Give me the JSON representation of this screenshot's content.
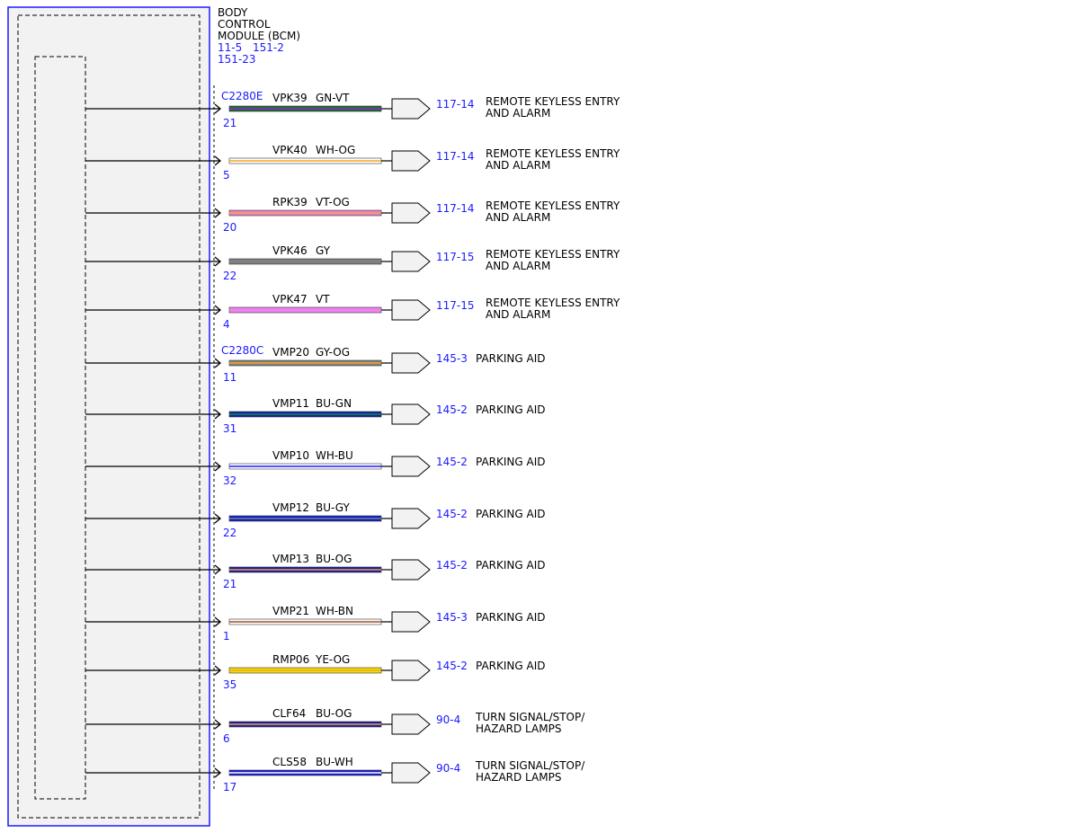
{
  "module": {
    "title_lines": [
      "BODY",
      "CONTROL",
      "MODULE (BCM)"
    ],
    "refs": [
      "11-5",
      "151-2",
      "151-23"
    ]
  },
  "wires": [
    {
      "connector": "C2280E",
      "pin": "21",
      "circuit": "VPK39",
      "color_code": "GN-VT",
      "colors": {
        "base": "#1e6b2a",
        "stripe": "#8a2be2"
      },
      "ref": "117-14",
      "dest": [
        "REMOTE KEYLESS ENTRY",
        "AND ALARM"
      ]
    },
    {
      "connector": "",
      "pin": "5",
      "circuit": "VPK40",
      "color_code": "WH-OG",
      "colors": {
        "base": "#ffffff",
        "stripe": "#f5a623"
      },
      "ref": "117-14",
      "dest": [
        "REMOTE KEYLESS ENTRY",
        "AND ALARM"
      ]
    },
    {
      "connector": "",
      "pin": "20",
      "circuit": "RPK39",
      "color_code": "VT-OG",
      "colors": {
        "base": "#e67fc0",
        "stripe": "#f5a060"
      },
      "ref": "117-14",
      "dest": [
        "REMOTE KEYLESS ENTRY",
        "AND ALARM"
      ]
    },
    {
      "connector": "",
      "pin": "22",
      "circuit": "VPK46",
      "color_code": "GY",
      "colors": {
        "base": "#808080",
        "stripe": "#808080"
      },
      "ref": "117-15",
      "dest": [
        "REMOTE KEYLESS ENTRY",
        "AND ALARM"
      ]
    },
    {
      "connector": "",
      "pin": "4",
      "circuit": "VPK47",
      "color_code": "VT",
      "colors": {
        "base": "#ee82ee",
        "stripe": "#ee82ee"
      },
      "ref": "117-15",
      "dest": [
        "REMOTE KEYLESS ENTRY",
        "AND ALARM"
      ]
    },
    {
      "connector": "C2280C",
      "pin": "11",
      "circuit": "VMP20",
      "color_code": "GY-OG",
      "colors": {
        "base": "#808080",
        "stripe": "#f5a623"
      },
      "ref": "145-3",
      "dest": [
        "PARKING AID"
      ]
    },
    {
      "connector": "",
      "pin": "31",
      "circuit": "VMP11",
      "color_code": "BU-GN",
      "colors": {
        "base": "#0a1fb0",
        "stripe": "#1e8a2a"
      },
      "ref": "145-2",
      "dest": [
        "PARKING AID"
      ]
    },
    {
      "connector": "",
      "pin": "32",
      "circuit": "VMP10",
      "color_code": "WH-BU",
      "colors": {
        "base": "#ffffff",
        "stripe": "#1a1aff"
      },
      "ref": "145-2",
      "dest": [
        "PARKING AID"
      ]
    },
    {
      "connector": "",
      "pin": "22",
      "circuit": "VMP12",
      "color_code": "BU-GY",
      "colors": {
        "base": "#0a1fd0",
        "stripe": "#808080"
      },
      "ref": "145-2",
      "dest": [
        "PARKING AID"
      ]
    },
    {
      "connector": "",
      "pin": "21",
      "circuit": "VMP13",
      "color_code": "BU-OG",
      "colors": {
        "base": "#1a1ab0",
        "stripe": "#f5a623"
      },
      "ref": "145-2",
      "dest": [
        "PARKING AID"
      ]
    },
    {
      "connector": "",
      "pin": "1",
      "circuit": "VMP21",
      "color_code": "WH-BN",
      "colors": {
        "base": "#ffffff",
        "stripe": "#a0522d"
      },
      "ref": "145-3",
      "dest": [
        "PARKING AID"
      ]
    },
    {
      "connector": "",
      "pin": "35",
      "circuit": "RMP06",
      "color_code": "YE-OG",
      "colors": {
        "base": "#f2e000",
        "stripe": "#f5a623"
      },
      "ref": "145-2",
      "dest": [
        "PARKING AID"
      ]
    },
    {
      "connector": "",
      "pin": "6",
      "circuit": "CLF64",
      "color_code": "BU-OG",
      "colors": {
        "base": "#1a1ab0",
        "stripe": "#f5a623"
      },
      "ref": "90-4",
      "dest": [
        "TURN SIGNAL/STOP/",
        "HAZARD LAMPS"
      ]
    },
    {
      "connector": "",
      "pin": "17",
      "circuit": "CLS58",
      "color_code": "BU-WH",
      "colors": {
        "base": "#1a1ad0",
        "stripe": "#ffffff"
      },
      "ref": "90-4",
      "dest": [
        "TURN SIGNAL/STOP/",
        "HAZARD LAMPS"
      ]
    }
  ],
  "style": {
    "ref_color": "#1a1aff",
    "module_border": "#1a1aff",
    "module_fill": "#f2f2f2",
    "text_color": "#000000"
  }
}
